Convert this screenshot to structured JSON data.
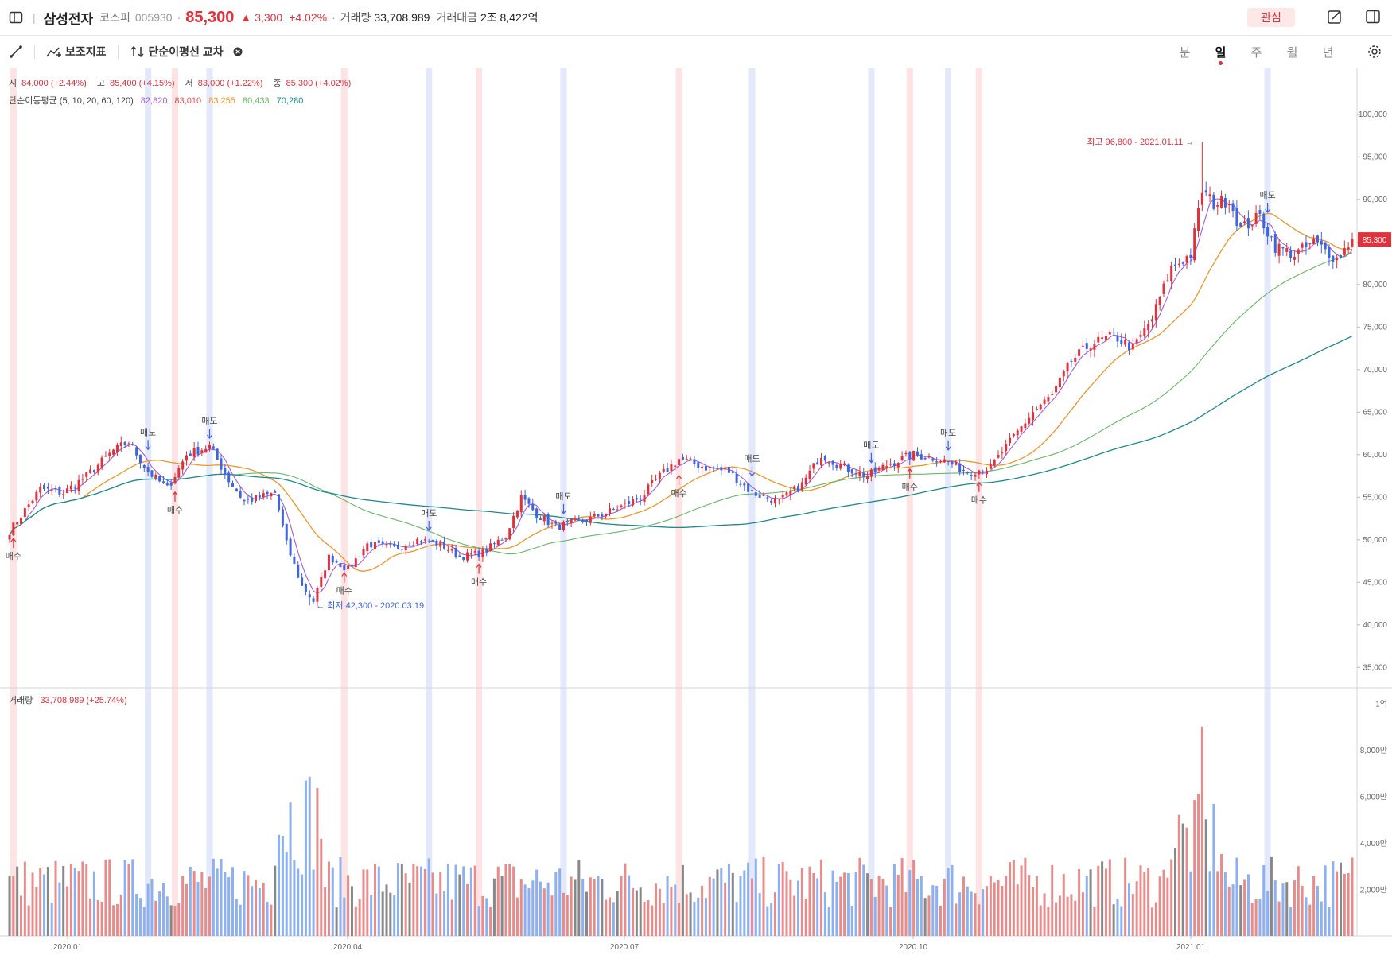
{
  "header": {
    "stock_name": "삼성전자",
    "market": "코스피",
    "code": "005930",
    "price": "85,300",
    "change": "▲ 3,300",
    "change_pct": "+4.02%",
    "volume_label": "거래량",
    "volume_value": "33,708,989",
    "amount_label": "거래대금",
    "amount_value": "2조 8,422억",
    "watch_label": "관심"
  },
  "toolbar": {
    "indicator_label": "보조지표",
    "cross_label": "단순이평선 교차",
    "periods": [
      "분",
      "일",
      "주",
      "월",
      "년"
    ],
    "active_period": "일"
  },
  "legend": {
    "open_label": "시",
    "open": "84,000 (+2.44%)",
    "high_label": "고",
    "high": "85,400 (+4.15%)",
    "low_label": "저",
    "low": "83,000 (+1.22%)",
    "close_label": "종",
    "close": "85,300 (+4.02%)",
    "ma_label": "단순이동평균 (5, 10, 20, 60, 120)",
    "ma_values": [
      "82,820",
      "83,010",
      "83,255",
      "80,433",
      "70,280"
    ],
    "volume_label": "거래량",
    "volume_value": "33,708,989 (+25.74%)"
  },
  "colors": {
    "up": "#e0313c",
    "down": "#3f64e0",
    "ma5": "#a35cdc",
    "ma10": "#e8504f",
    "ma20": "#f0952a",
    "ma60": "#66b866",
    "ma120": "#1a8a90",
    "buy_band": "#fde3e3",
    "sell_band": "#e3e8fb",
    "vol_up": "#e88b8b",
    "vol_down": "#8cb0f0",
    "vol_flat": "#888888"
  },
  "chart_data": {
    "type": "candlestick",
    "y_ticks": [
      35000,
      40000,
      45000,
      50000,
      55000,
      60000,
      65000,
      70000,
      75000,
      80000,
      85000,
      90000,
      95000,
      100000
    ],
    "y_tick_labels": [
      "35,000",
      "40,000",
      "45,000",
      "50,000",
      "55,000",
      "60,000",
      "65,000",
      "70,000",
      "75,000",
      "80,000",
      "85,000",
      "90,000",
      "95,000",
      "100,000"
    ],
    "ylim": [
      34000,
      104000
    ],
    "x_labels": [
      "2020.01",
      "2020.04",
      "2020.07",
      "2020.10",
      "2021.01"
    ],
    "vol_ticks": [
      "2,000만",
      "4,000만",
      "6,000만",
      "8,000만",
      "1억"
    ],
    "last_price_label": "85,300",
    "high_annotation": "최고 96,800 - 2021.01.11",
    "low_annotation": "최저 42,300 - 2020.03.19",
    "buy_label": "매수",
    "sell_label": "매도",
    "close_path": [
      [
        0,
        51000
      ],
      [
        8,
        56000
      ],
      [
        14,
        55500
      ],
      [
        20,
        57500
      ],
      [
        27,
        60500
      ],
      [
        31,
        61500
      ],
      [
        36,
        58000
      ],
      [
        41,
        56000
      ],
      [
        46,
        60000
      ],
      [
        52,
        61000
      ],
      [
        57,
        57000
      ],
      [
        61,
        54500
      ],
      [
        69,
        55500
      ],
      [
        72,
        49500
      ],
      [
        76,
        44500
      ],
      [
        79,
        42800
      ],
      [
        83,
        48000
      ],
      [
        88,
        46500
      ],
      [
        93,
        49500
      ],
      [
        100,
        49000
      ],
      [
        106,
        50000
      ],
      [
        112,
        49500
      ],
      [
        117,
        48000
      ],
      [
        123,
        48500
      ],
      [
        129,
        50500
      ],
      [
        133,
        55000
      ],
      [
        137,
        53000
      ],
      [
        142,
        51500
      ],
      [
        151,
        52500
      ],
      [
        157,
        53500
      ],
      [
        164,
        55000
      ],
      [
        169,
        57500
      ],
      [
        174,
        59500
      ],
      [
        181,
        58500
      ],
      [
        187,
        58000
      ],
      [
        193,
        55500
      ],
      [
        200,
        54500
      ],
      [
        206,
        56500
      ],
      [
        211,
        60000
      ],
      [
        217,
        58500
      ],
      [
        223,
        57500
      ],
      [
        229,
        59000
      ],
      [
        235,
        60000
      ],
      [
        242,
        59500
      ],
      [
        249,
        58000
      ],
      [
        255,
        58500
      ],
      [
        260,
        61500
      ],
      [
        266,
        65000
      ],
      [
        271,
        67000
      ],
      [
        276,
        71000
      ],
      [
        281,
        73000
      ],
      [
        287,
        74000
      ],
      [
        292,
        72500
      ],
      [
        297,
        76000
      ],
      [
        302,
        82000
      ],
      [
        307,
        83500
      ],
      [
        310,
        91000
      ],
      [
        313,
        89500
      ],
      [
        317,
        90000
      ],
      [
        320,
        86500
      ],
      [
        325,
        88000
      ],
      [
        329,
        84500
      ],
      [
        334,
        83500
      ],
      [
        339,
        85000
      ],
      [
        345,
        83000
      ],
      [
        349,
        85300
      ]
    ],
    "buy_signals": [
      1,
      43,
      87,
      122,
      174,
      234,
      252
    ],
    "sell_signals": [
      36,
      52,
      109,
      144,
      193,
      224,
      244,
      327
    ]
  }
}
